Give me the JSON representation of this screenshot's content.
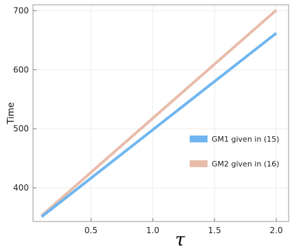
{
  "chart_data": {
    "type": "line",
    "title": "",
    "xlabel": "τ",
    "ylabel": "Time",
    "xlim": [
      0.03,
      2.1
    ],
    "ylim": [
      343,
      710
    ],
    "xticks": [
      0.5,
      1.0,
      1.5,
      2.0
    ],
    "xtick_labels": [
      "0.5",
      "1.0",
      "1.5",
      "2.0"
    ],
    "yticks": [
      400,
      500,
      600,
      700
    ],
    "ytick_labels": [
      "400",
      "500",
      "600",
      "700"
    ],
    "grid": true,
    "legend_position": "right",
    "series": [
      {
        "name": "GM1 given in (15)",
        "color": "#6fb6f0",
        "x": [
          0.1,
          2.0
        ],
        "y": [
          351,
          662
        ]
      },
      {
        "name": "GM2 given in (16)",
        "color": "#e8bcaa",
        "x": [
          0.1,
          2.0
        ],
        "y": [
          353,
          701
        ]
      }
    ]
  }
}
